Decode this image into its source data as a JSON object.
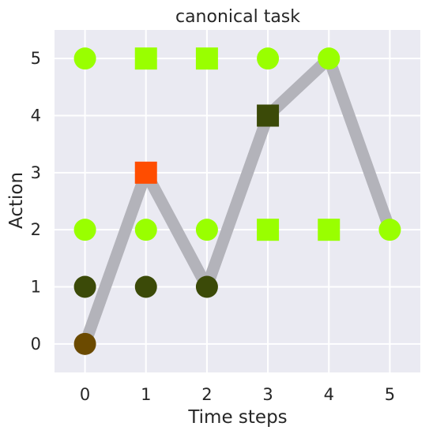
{
  "chart_data": {
    "type": "scatter",
    "title": "canonical task",
    "xlabel": "Time steps",
    "ylabel": "Action",
    "xlim": [
      -0.5,
      5.5
    ],
    "ylim": [
      -0.5,
      5.5
    ],
    "x_ticks": [
      "0",
      "1",
      "2",
      "3",
      "4",
      "5"
    ],
    "y_ticks": [
      "0",
      "1",
      "2",
      "3",
      "4",
      "5"
    ],
    "grid": true,
    "background_color": "#eaeaf2",
    "path": {
      "color": "#b3b3ba",
      "points": [
        [
          0,
          0
        ],
        [
          1,
          3
        ],
        [
          2,
          1
        ],
        [
          3,
          4
        ],
        [
          4,
          5
        ],
        [
          5,
          2
        ]
      ]
    },
    "points": [
      {
        "x": 0,
        "y": 5,
        "shape": "circle",
        "color": "#99ff00"
      },
      {
        "x": 0,
        "y": 2,
        "shape": "circle",
        "color": "#99ff00"
      },
      {
        "x": 0,
        "y": 1,
        "shape": "circle",
        "color": "#3b4a08"
      },
      {
        "x": 0,
        "y": 0,
        "shape": "circle",
        "color": "#6b4a00"
      },
      {
        "x": 1,
        "y": 5,
        "shape": "square",
        "color": "#99ff00"
      },
      {
        "x": 1,
        "y": 3,
        "shape": "square",
        "color": "#ff4d00"
      },
      {
        "x": 1,
        "y": 2,
        "shape": "circle",
        "color": "#99ff00"
      },
      {
        "x": 1,
        "y": 1,
        "shape": "circle",
        "color": "#3b4a08"
      },
      {
        "x": 2,
        "y": 5,
        "shape": "square",
        "color": "#99ff00"
      },
      {
        "x": 2,
        "y": 2,
        "shape": "circle",
        "color": "#99ff00"
      },
      {
        "x": 2,
        "y": 1,
        "shape": "circle",
        "color": "#3b4a08"
      },
      {
        "x": 3,
        "y": 5,
        "shape": "circle",
        "color": "#99ff00"
      },
      {
        "x": 3,
        "y": 4,
        "shape": "square",
        "color": "#3b4a08"
      },
      {
        "x": 3,
        "y": 2,
        "shape": "square",
        "color": "#99ff00"
      },
      {
        "x": 4,
        "y": 5,
        "shape": "circle",
        "color": "#99ff00"
      },
      {
        "x": 4,
        "y": 2,
        "shape": "square",
        "color": "#99ff00"
      },
      {
        "x": 5,
        "y": 2,
        "shape": "circle",
        "color": "#99ff00"
      }
    ]
  }
}
